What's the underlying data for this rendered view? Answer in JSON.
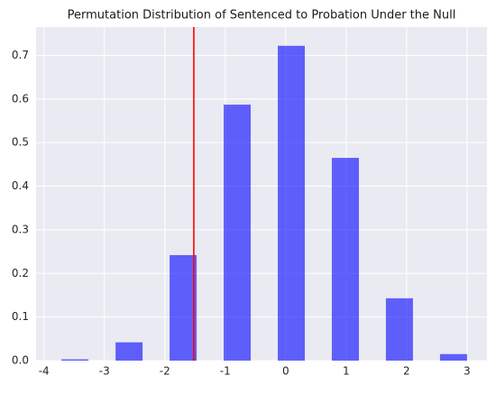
{
  "chart_data": {
    "type": "histogram",
    "title": "Permutation Distribution of Sentenced to Probation Under the Null",
    "bins": [
      -3.71,
      -3.263,
      -2.815,
      -2.368,
      -1.921,
      -1.473,
      -1.026,
      -0.579,
      -0.131,
      0.316,
      0.763,
      1.211,
      1.658,
      2.105,
      2.553,
      3.0
    ],
    "values": [
      0.003,
      0,
      0.042,
      0,
      0.242,
      0,
      0.587,
      0,
      0.722,
      0,
      0.465,
      0,
      0.143,
      0,
      0.015
    ],
    "color": "#0000ff",
    "vline": {
      "x": -1.52,
      "color": "#ff0000"
    },
    "xlim": [
      -4.13,
      3.33
    ],
    "xticks": [
      -4,
      -3,
      -2,
      -1,
      0,
      1,
      2,
      3
    ],
    "ylim": [
      0,
      0.765
    ],
    "yticks": [
      {
        "value": 0,
        "label": "0.0"
      },
      0.1,
      0.2,
      0.3,
      0.4,
      0.5,
      0.6,
      0.7
    ],
    "grid": true
  }
}
